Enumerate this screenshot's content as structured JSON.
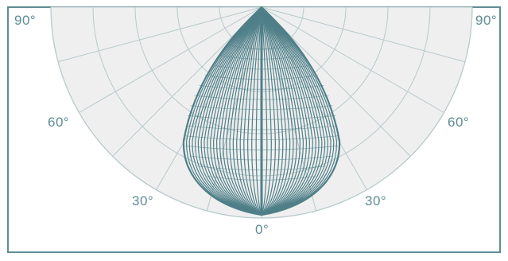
{
  "labels": {
    "top_left": "90°",
    "top_right": "90°",
    "left_60": "60°",
    "right_60": "60°",
    "left_30": "30°",
    "right_30": "30°",
    "bottom_0": "0°"
  },
  "colors": {
    "frame": "#5f8c95",
    "grid": "#b9c9cc",
    "fill": "#efefef",
    "curve": "#4f7f88",
    "text": "#5f8c95"
  },
  "chart_data": {
    "type": "polar",
    "angles_deg": [
      0,
      30,
      60,
      90
    ],
    "grid_rings": 5,
    "grid_spokes_deg": [
      -90,
      -75,
      -60,
      -45,
      -30,
      -15,
      0,
      15,
      30,
      45,
      60,
      75,
      90
    ],
    "distribution": "narrow symmetric teardrop-shaped beam centered at 0°"
  }
}
